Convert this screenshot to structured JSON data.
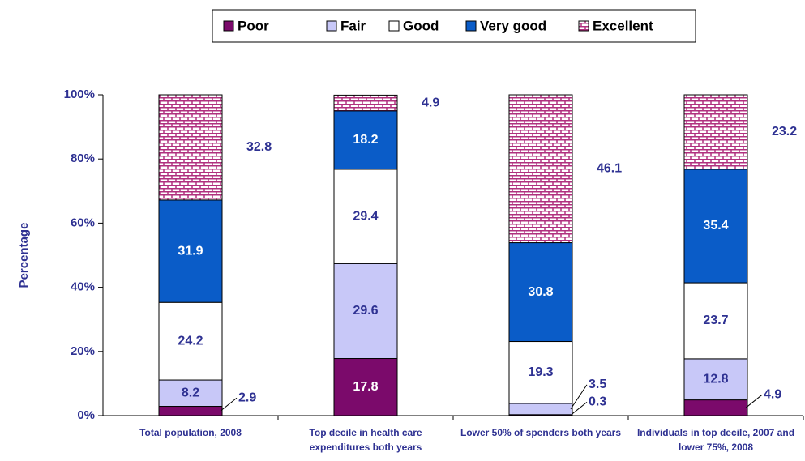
{
  "chart_data": {
    "type": "stacked_bar",
    "categories": [
      "Total population, 2008",
      "Top decile in health care expenditures both years",
      "Lower 50% of spenders both years",
      "Individuals in top decile, 2007 and lower 75%, 2008"
    ],
    "series": [
      {
        "name": "Poor",
        "color": "#7b0a6b",
        "values": [
          2.9,
          17.8,
          0.3,
          4.9
        ]
      },
      {
        "name": "Fair",
        "color": "#c8c8f8",
        "values": [
          8.2,
          29.6,
          3.5,
          12.8
        ]
      },
      {
        "name": "Good",
        "color": "#ffffff",
        "values": [
          24.2,
          29.4,
          19.3,
          23.7
        ]
      },
      {
        "name": "Very good",
        "color": "#0a5cc8",
        "values": [
          31.9,
          18.2,
          30.8,
          35.4
        ]
      },
      {
        "name": "Excellent",
        "color": "#b0307f",
        "values": [
          32.8,
          4.9,
          46.1,
          23.2
        ]
      }
    ],
    "ylabel": "Percentage",
    "ylim": [
      0,
      100
    ],
    "yticks": [
      {
        "value": 0,
        "label": "0%"
      },
      {
        "value": 20,
        "label": "20%"
      },
      {
        "value": 40,
        "label": "40%"
      },
      {
        "value": 60,
        "label": "60%"
      },
      {
        "value": 80,
        "label": "80%"
      },
      {
        "value": 100,
        "label": "100%"
      }
    ],
    "legend": "top"
  }
}
